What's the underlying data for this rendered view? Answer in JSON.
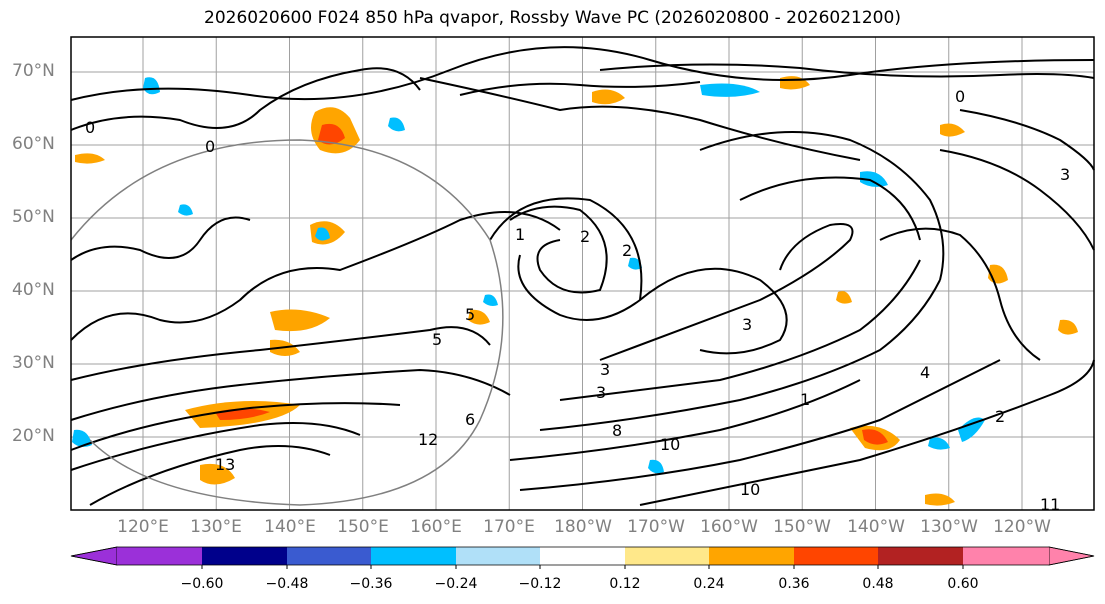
{
  "title": "2026020600 F024 850 hPa qvapor, Rossby Wave PC (2026020800 - 2026021200)",
  "map": {
    "lat_labels": [
      "70°N",
      "60°N",
      "50°N",
      "40°N",
      "30°N",
      "20°N"
    ],
    "lon_labels": [
      "120°E",
      "130°E",
      "140°E",
      "150°E",
      "160°E",
      "170°E",
      "180°W",
      "170°W",
      "160°W",
      "150°W",
      "140°W",
      "130°W",
      "120°W"
    ],
    "contour_labels": [
      "0",
      "0",
      "0",
      "1",
      "2",
      "2",
      "3",
      "3",
      "3",
      "4",
      "5",
      "5",
      "6",
      "8",
      "10",
      "10",
      "11",
      "12",
      "13",
      "1",
      "2",
      "3"
    ]
  },
  "colorbar": {
    "tick_labels": [
      "−0.60",
      "−0.48",
      "−0.36",
      "−0.24",
      "−0.12",
      "0.12",
      "0.24",
      "0.36",
      "0.48",
      "0.60"
    ],
    "colors": [
      "#9b30d9",
      "#00008b",
      "#3a5bd0",
      "#00bfff",
      "#b0e0f8",
      "#ffffff",
      "#ffe88a",
      "#ffa500",
      "#ff4500",
      "#b22222",
      "#ff82ab"
    ]
  }
}
